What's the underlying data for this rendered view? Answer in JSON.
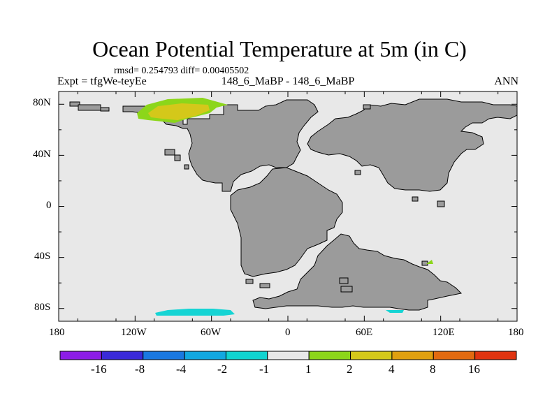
{
  "title": "Ocean Potential Temperature at 5m (in C)",
  "stats": "rmsd= 0.254793 diff= 0.00405502",
  "experiment": "Expt = tfgWe-teyEe",
  "case_label": "148_6_MaBP - 148_6_MaBP",
  "season": "ANN",
  "axes": {
    "x_ticks": [
      "180",
      "120W",
      "60W",
      "0",
      "60E",
      "120E",
      "180"
    ],
    "y_ticks": [
      "80N",
      "40N",
      "0",
      "40S",
      "80S"
    ]
  },
  "colorbar": {
    "labels": [
      "-16",
      "-8",
      "-4",
      "-2",
      "-1",
      "1",
      "2",
      "4",
      "8",
      "16"
    ],
    "colors": [
      "#8c1ce6",
      "#3a2ad8",
      "#1a78e0",
      "#12a8e0",
      "#10d4d0",
      "#e8e8e8",
      "#8cd61a",
      "#d4c81a",
      "#e0a010",
      "#e26a10",
      "#e03410"
    ]
  },
  "map_colors": {
    "ocean": "#e8e8e8",
    "land": "#9b9b9b",
    "anomaly_cyan": "#16d4d4",
    "anomaly_green": "#8cd61a",
    "anomaly_yellow": "#d4c81a"
  }
}
